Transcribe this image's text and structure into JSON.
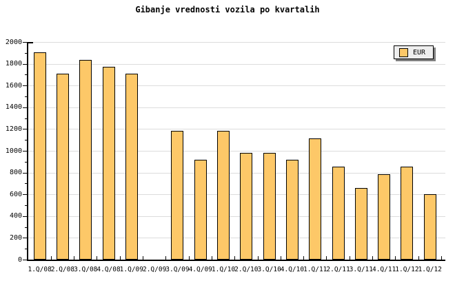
{
  "title": "Gibanje vrednosti vozila po kvartalih",
  "legend": {
    "label": "EUR"
  },
  "colors": {
    "bar_fill": "#FDC868",
    "bar_border": "#000000",
    "gridline": "#DCDCDC",
    "axis": "#000000",
    "legend_bg": "#EEEEEE",
    "legend_shadow": "#808080",
    "background": "#FFFFFF"
  },
  "chart_data": {
    "type": "bar",
    "title": "Gibanje vrednosti vozila po kvartalih",
    "categories": [
      "1.Q/08",
      "2.Q/08",
      "3.Q/08",
      "4.Q/08",
      "1.Q/09",
      "2.Q/09",
      "3.Q/09",
      "4.Q/09",
      "1.Q/10",
      "2.Q/10",
      "3.Q/10",
      "4.Q/10",
      "1.Q/11",
      "2.Q/11",
      "3.Q/11",
      "4.Q/11",
      "1.Q/12",
      "1.Q/12"
    ],
    "series": [
      {
        "name": "EUR",
        "values": [
          1910,
          1715,
          1840,
          1775,
          1715,
          null,
          1185,
          920,
          1185,
          985,
          985,
          920,
          1115,
          860,
          660,
          790,
          860,
          605
        ]
      }
    ],
    "xlabel": "",
    "ylabel": "",
    "ylim": [
      0,
      2000
    ],
    "ytick_major": 200,
    "ytick_minor": 100,
    "y_tick_labels": [
      "0",
      "200",
      "400",
      "600",
      "800",
      "1000",
      "1200",
      "1400",
      "1600",
      "1800",
      "2000"
    ],
    "grid": true,
    "legend_position": "top-right",
    "missing_categories": [
      "2.Q/09"
    ]
  }
}
